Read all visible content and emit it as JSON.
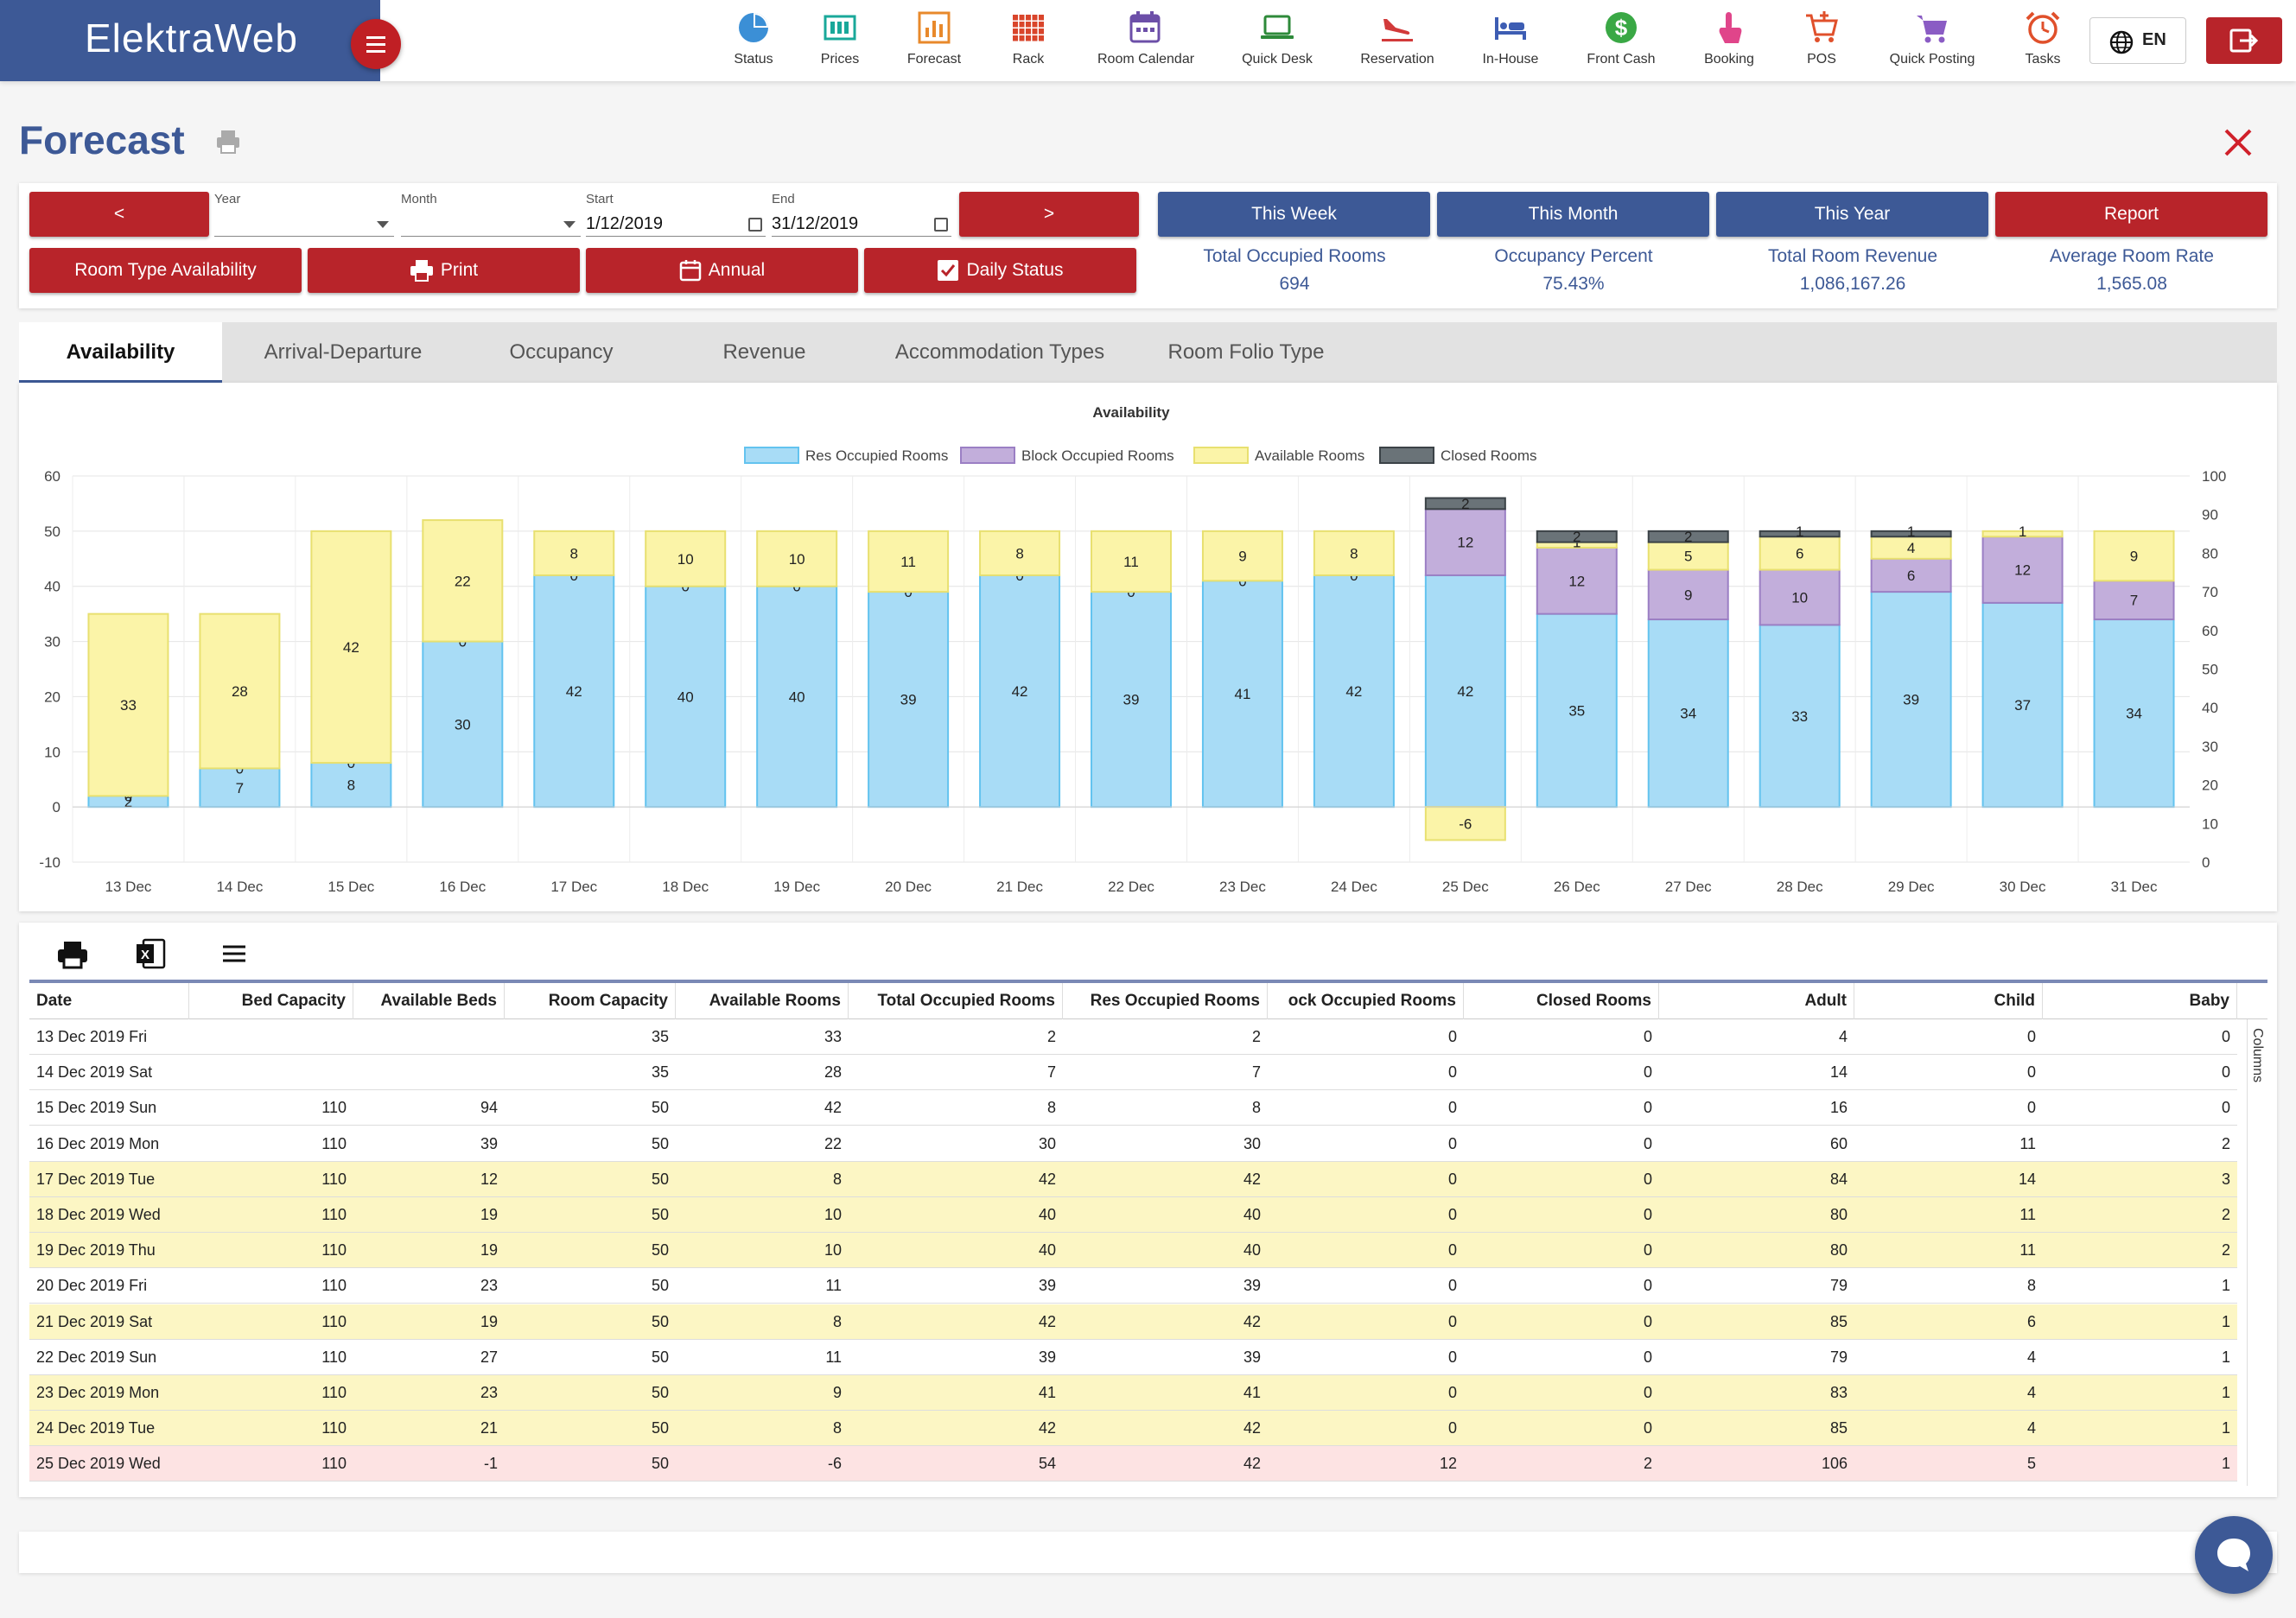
{
  "app": {
    "brand": "ElektraWeb",
    "language": "EN"
  },
  "nav": [
    {
      "label": "Status",
      "icon": "pie-chart-icon",
      "color": "#3b8fd6"
    },
    {
      "label": "Prices",
      "icon": "price-tag-icon",
      "color": "#1aa89a"
    },
    {
      "label": "Forecast",
      "icon": "bar-chart-icon",
      "color": "#e8892b"
    },
    {
      "label": "Rack",
      "icon": "grid-icon",
      "color": "#d9452b"
    },
    {
      "label": "Room Calendar",
      "icon": "calendar-icon",
      "color": "#6c4fa8"
    },
    {
      "label": "Quick Desk",
      "icon": "laptop-icon",
      "color": "#2e8a3a"
    },
    {
      "label": "Reservation",
      "icon": "plane-landing-icon",
      "color": "#d23a3a"
    },
    {
      "label": "In-House",
      "icon": "bed-icon",
      "color": "#3d5db3"
    },
    {
      "label": "Front Cash",
      "icon": "dollar-icon",
      "color": "#3aa845"
    },
    {
      "label": "Booking",
      "icon": "hand-pointer-icon",
      "color": "#e0458a"
    },
    {
      "label": "POS",
      "icon": "cart-plus-icon",
      "color": "#e0502b"
    },
    {
      "label": "Quick Posting",
      "icon": "cart-icon",
      "color": "#8a5cc4"
    },
    {
      "label": "Tasks",
      "icon": "alarm-clock-icon",
      "color": "#e0502b"
    }
  ],
  "page": {
    "title": "Forecast"
  },
  "controls": {
    "prev_label": "<",
    "next_label": ">",
    "year": {
      "label": "Year",
      "value": ""
    },
    "month": {
      "label": "Month",
      "value": ""
    },
    "start": {
      "label": "Start",
      "value": "1/12/2019"
    },
    "end": {
      "label": "End",
      "value": "31/12/2019"
    },
    "room_type_availability": "Room Type Availability",
    "print": "Print",
    "annual": "Annual",
    "daily_status": "Daily Status",
    "this_week": "This Week",
    "this_month": "This Month",
    "this_year": "This Year",
    "report": "Report"
  },
  "stats": [
    {
      "label": "Total Occupied Rooms",
      "value": "694"
    },
    {
      "label": "Occupancy Percent",
      "value": "75.43%"
    },
    {
      "label": "Total Room Revenue",
      "value": "1,086,167.26"
    },
    {
      "label": "Average Room Rate",
      "value": "1,565.08"
    }
  ],
  "tabs": [
    "Availability",
    "Arrival-Departure",
    "Occupancy",
    "Revenue",
    "Accommodation Types",
    "Room Folio Type"
  ],
  "active_tab": "Availability",
  "chart_data": {
    "type": "bar",
    "stacked": true,
    "title": "Availability",
    "categories": [
      "13 Dec",
      "14 Dec",
      "15 Dec",
      "16 Dec",
      "17 Dec",
      "18 Dec",
      "19 Dec",
      "20 Dec",
      "21 Dec",
      "22 Dec",
      "23 Dec",
      "24 Dec",
      "25 Dec",
      "26 Dec",
      "27 Dec",
      "28 Dec",
      "29 Dec",
      "30 Dec",
      "31 Dec"
    ],
    "series": [
      {
        "name": "Res Occupied Rooms",
        "color": "#a8dcf6",
        "stroke": "#63c3ef",
        "values": [
          2,
          7,
          8,
          30,
          42,
          40,
          40,
          39,
          42,
          39,
          41,
          42,
          42,
          35,
          34,
          33,
          39,
          37,
          34
        ]
      },
      {
        "name": "Block Occupied Rooms",
        "color": "#c2aedb",
        "stroke": "#9b7fc4",
        "values": [
          0,
          0,
          0,
          0,
          0,
          0,
          0,
          0,
          0,
          0,
          0,
          0,
          12,
          12,
          9,
          10,
          6,
          12,
          7
        ]
      },
      {
        "name": "Available Rooms",
        "color": "#fbf4a8",
        "stroke": "#e8e070",
        "values": [
          33,
          28,
          42,
          22,
          8,
          10,
          10,
          11,
          8,
          11,
          9,
          8,
          -6,
          1,
          5,
          6,
          4,
          1,
          9
        ]
      },
      {
        "name": "Closed Rooms",
        "color": "#6a7378",
        "stroke": "#3b4247",
        "values": [
          0,
          0,
          0,
          0,
          0,
          0,
          0,
          0,
          0,
          0,
          0,
          0,
          2,
          2,
          2,
          1,
          1,
          0,
          0
        ]
      }
    ],
    "ylim": [
      -10,
      60
    ],
    "yticks": [
      -10,
      0,
      10,
      20,
      30,
      40,
      50,
      60
    ],
    "y2lim": [
      0,
      100
    ],
    "y2ticks": [
      0,
      10,
      20,
      30,
      40,
      50,
      60,
      70,
      80,
      90,
      100
    ],
    "legend_position": "top-center",
    "grid": true
  },
  "grid": {
    "columns": [
      "Date",
      "Bed Capacity",
      "Available Beds",
      "Room Capacity",
      "Available Rooms",
      "Total Occupied Rooms",
      "Res Occupied Rooms",
      "ock Occupied Rooms",
      "Closed Rooms",
      "Adult",
      "Child",
      "Baby"
    ],
    "side_label": "Columns",
    "rows": [
      {
        "cells": [
          "13 Dec 2019 Fri",
          "",
          "",
          "35",
          "33",
          "2",
          "2",
          "0",
          "0",
          "4",
          "0",
          "0"
        ],
        "hl": "none"
      },
      {
        "cells": [
          "14 Dec 2019 Sat",
          "",
          "",
          "35",
          "28",
          "7",
          "7",
          "0",
          "0",
          "14",
          "0",
          "0"
        ],
        "hl": "none"
      },
      {
        "cells": [
          "15 Dec 2019 Sun",
          "110",
          "94",
          "50",
          "42",
          "8",
          "8",
          "0",
          "0",
          "16",
          "0",
          "0"
        ],
        "hl": "none"
      },
      {
        "cells": [
          "16 Dec 2019 Mon",
          "110",
          "39",
          "50",
          "22",
          "30",
          "30",
          "0",
          "0",
          "60",
          "11",
          "2"
        ],
        "hl": "none"
      },
      {
        "cells": [
          "17 Dec 2019 Tue",
          "110",
          "12",
          "50",
          "8",
          "42",
          "42",
          "0",
          "0",
          "84",
          "14",
          "3"
        ],
        "hl": "yellow"
      },
      {
        "cells": [
          "18 Dec 2019 Wed",
          "110",
          "19",
          "50",
          "10",
          "40",
          "40",
          "0",
          "0",
          "80",
          "11",
          "2"
        ],
        "hl": "yellow"
      },
      {
        "cells": [
          "19 Dec 2019 Thu",
          "110",
          "19",
          "50",
          "10",
          "40",
          "40",
          "0",
          "0",
          "80",
          "11",
          "2"
        ],
        "hl": "yellow"
      },
      {
        "cells": [
          "20 Dec 2019 Fri",
          "110",
          "23",
          "50",
          "11",
          "39",
          "39",
          "0",
          "0",
          "79",
          "8",
          "1"
        ],
        "hl": "none"
      },
      {
        "cells": [
          "21 Dec 2019 Sat",
          "110",
          "19",
          "50",
          "8",
          "42",
          "42",
          "0",
          "0",
          "85",
          "6",
          "1"
        ],
        "hl": "yellow"
      },
      {
        "cells": [
          "22 Dec 2019 Sun",
          "110",
          "27",
          "50",
          "11",
          "39",
          "39",
          "0",
          "0",
          "79",
          "4",
          "1"
        ],
        "hl": "none"
      },
      {
        "cells": [
          "23 Dec 2019 Mon",
          "110",
          "23",
          "50",
          "9",
          "41",
          "41",
          "0",
          "0",
          "83",
          "4",
          "1"
        ],
        "hl": "yellow"
      },
      {
        "cells": [
          "24 Dec 2019 Tue",
          "110",
          "21",
          "50",
          "8",
          "42",
          "42",
          "0",
          "0",
          "85",
          "4",
          "1"
        ],
        "hl": "yellow"
      },
      {
        "cells": [
          "25 Dec 2019 Wed",
          "110",
          "-1",
          "50",
          "-6",
          "54",
          "42",
          "12",
          "2",
          "106",
          "5",
          "1"
        ],
        "hl": "red"
      }
    ]
  }
}
